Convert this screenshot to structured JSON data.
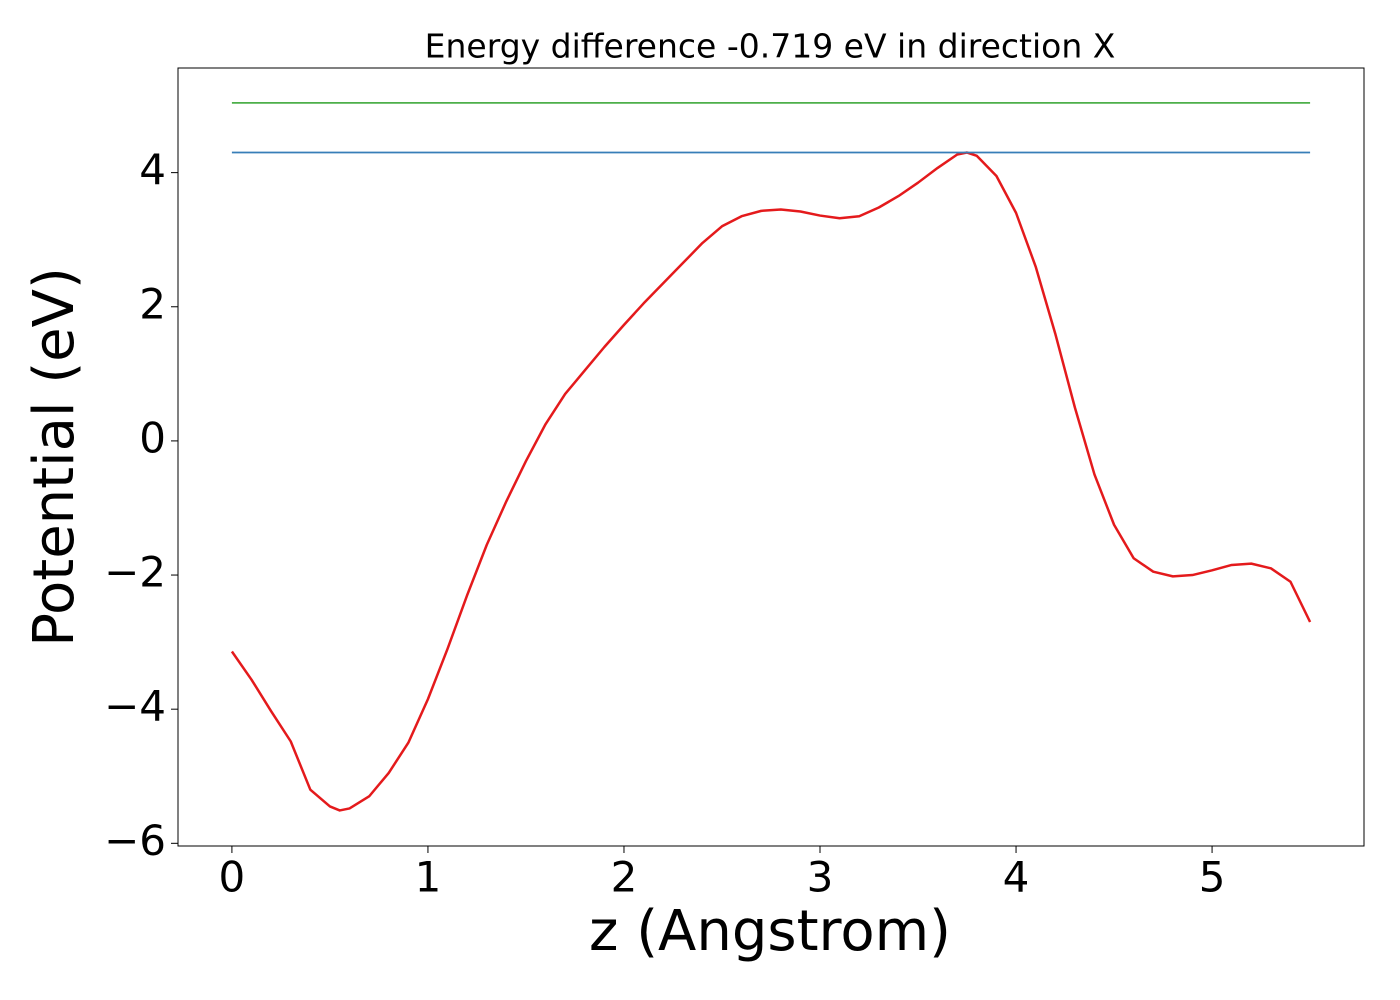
{
  "chart_data": {
    "type": "line",
    "title": "Energy difference -0.719 eV in direction X",
    "x_label": "z (Angstrom)",
    "y_label": "Potential (eV)",
    "xlim": [
      -0.275,
      5.775
    ],
    "ylim": [
      -6.04,
      5.56
    ],
    "xticks": [
      0,
      1,
      2,
      3,
      4,
      5
    ],
    "yticks": [
      {
        "value": -6,
        "label": "−6"
      },
      {
        "value": -4,
        "label": "−4"
      },
      {
        "value": -2,
        "label": "−2"
      },
      0,
      2,
      4
    ],
    "series": [
      {
        "color": "#e41a1c",
        "x": [
          0,
          0.1,
          0.2,
          0.3,
          0.4,
          0.5,
          0.55,
          0.6,
          0.7,
          0.8,
          0.9,
          1.0,
          1.1,
          1.2,
          1.3,
          1.4,
          1.5,
          1.6,
          1.7,
          1.8,
          1.9,
          2.0,
          2.1,
          2.2,
          2.3,
          2.4,
          2.5,
          2.6,
          2.7,
          2.8,
          2.9,
          3.0,
          3.1,
          3.2,
          3.3,
          3.4,
          3.5,
          3.6,
          3.7,
          3.75,
          3.8,
          3.9,
          4.0,
          4.1,
          4.2,
          4.3,
          4.4,
          4.5,
          4.6,
          4.7,
          4.8,
          4.9,
          5.0,
          5.1,
          5.2,
          5.3,
          5.4,
          5.5
        ],
        "values": [
          -3.14,
          -3.56,
          -4.03,
          -4.48,
          -5.2,
          -5.45,
          -5.51,
          -5.48,
          -5.3,
          -4.95,
          -4.5,
          -3.85,
          -3.1,
          -2.3,
          -1.55,
          -0.9,
          -0.3,
          0.25,
          0.7,
          1.05,
          1.4,
          1.73,
          2.05,
          2.35,
          2.65,
          2.95,
          3.2,
          3.35,
          3.43,
          3.45,
          3.42,
          3.36,
          3.32,
          3.35,
          3.48,
          3.65,
          3.85,
          4.07,
          4.27,
          4.3,
          4.25,
          3.95,
          3.4,
          2.6,
          1.6,
          0.5,
          -0.5,
          -1.25,
          -1.75,
          -1.95,
          -2.02,
          -2.0,
          -1.93,
          -1.85,
          -1.83,
          -1.9,
          -2.1,
          -2.7
        ]
      },
      {
        "color": "#377eb8",
        "x": [
          0,
          5.5
        ],
        "values": [
          4.3,
          4.3
        ]
      },
      {
        "color": "#4daf4a",
        "x": [
          0,
          5.5
        ],
        "values": [
          5.04,
          5.04
        ]
      }
    ]
  }
}
